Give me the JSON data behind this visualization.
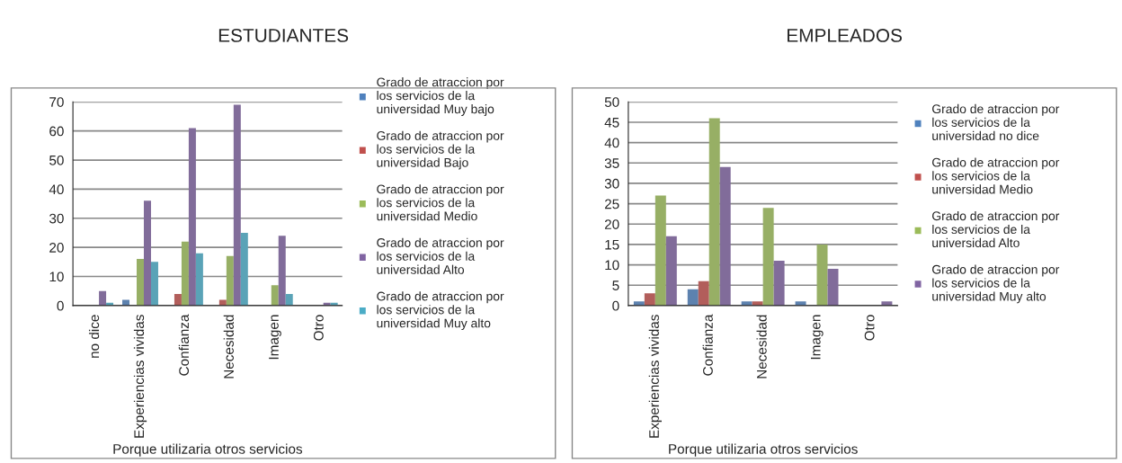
{
  "chart_data": [
    {
      "type": "bar",
      "title": "ESTUDIANTES",
      "xlabel": "Porque utilizaria otros servicios",
      "categories": [
        "no dice",
        "Experiencias vividas",
        "Confianza",
        "Necesidad",
        "Imagen",
        "Otro"
      ],
      "ylim": [
        0,
        70
      ],
      "yticks": [
        0,
        10,
        20,
        30,
        40,
        50,
        60,
        70
      ],
      "grid": "y",
      "legend": "right",
      "series": [
        {
          "name": "Grado de atraccion por los servicios de la universidad Muy bajo",
          "color": "#4f81bd",
          "values": [
            0,
            2,
            0,
            0,
            0,
            0
          ]
        },
        {
          "name": "Grado de atraccion por los servicios de la universidad Bajo",
          "color": "#c0504d",
          "values": [
            0,
            0,
            4,
            2,
            0,
            0
          ]
        },
        {
          "name": "Grado de atraccion por los servicios de la universidad Medio",
          "color": "#9bbb59",
          "values": [
            0,
            16,
            22,
            17,
            7,
            0
          ]
        },
        {
          "name": "Grado de atraccion por los servicios de la universidad Alto",
          "color": "#8064a2",
          "values": [
            5,
            36,
            61,
            69,
            24,
            1
          ]
        },
        {
          "name": "Grado de atraccion por los servicios de la universidad Muy alto",
          "color": "#4bacc6",
          "values": [
            1,
            15,
            18,
            25,
            4,
            1
          ]
        }
      ]
    },
    {
      "type": "bar",
      "title": "EMPLEADOS",
      "xlabel": "Porque utilizaria otros servicios",
      "categories": [
        "Experiencias vividas",
        "Confianza",
        "Necesidad",
        "Imagen",
        "Otro"
      ],
      "ylim": [
        0,
        50
      ],
      "yticks": [
        0,
        5,
        10,
        15,
        20,
        25,
        30,
        35,
        40,
        45,
        50
      ],
      "grid": "y",
      "legend": "right",
      "series": [
        {
          "name": "Grado de atraccion por los servicios de la universidad no dice",
          "color": "#4f81bd",
          "values": [
            1,
            4,
            1,
            1,
            0
          ]
        },
        {
          "name": "Grado de atraccion por los servicios de la universidad Medio",
          "color": "#c0504d",
          "values": [
            3,
            6,
            1,
            0,
            0
          ]
        },
        {
          "name": "Grado de atraccion por los servicios de la universidad Alto",
          "color": "#9bbb59",
          "values": [
            27,
            46,
            24,
            15,
            0
          ]
        },
        {
          "name": "Grado de atraccion por los servicios de la universidad Muy alto",
          "color": "#8064a2",
          "values": [
            17,
            34,
            11,
            9,
            1
          ]
        }
      ]
    }
  ]
}
